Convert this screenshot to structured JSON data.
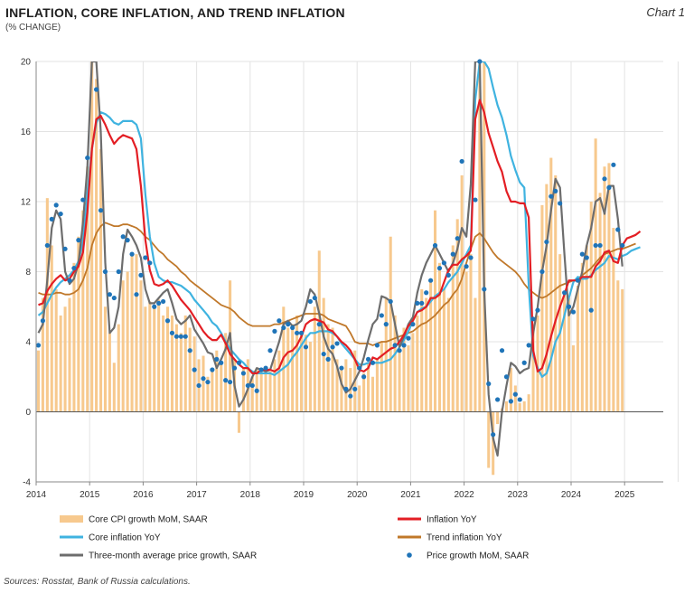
{
  "header": {
    "title": "INFLATION, CORE INFLATION, AND TREND INFLATION",
    "subtitle": "(% CHANGE)",
    "chart_number": "Chart 1"
  },
  "footer": {
    "source": "Sources: Rosstat, Bank of Russia calculations."
  },
  "colors": {
    "bars": "#f7c98e",
    "inflation": "#e31e24",
    "core": "#3fb3e0",
    "trend": "#c0782a",
    "three_month": "#6d6d6d",
    "dots": "#1f74b8",
    "grid": "#e3e3e3"
  },
  "chart_data": {
    "type": "bar",
    "ylim": [
      -4,
      20
    ],
    "yticks": [
      -4,
      0,
      4,
      8,
      12,
      16,
      20
    ],
    "xlim": [
      2014,
      2026
    ],
    "xticks": [
      "2014",
      "2015",
      "2016",
      "2017",
      "2018",
      "2019",
      "2020",
      "2021",
      "2022",
      "2023",
      "2024",
      "2025"
    ],
    "grid": true,
    "legend_position": "bottom",
    "series": [
      {
        "name": "Core CPI growth MoM, SAAR",
        "kind": "bar",
        "values": [
          3.5,
          6.5,
          12.2,
          9.5,
          7.0,
          5.5,
          6.0,
          6.5,
          8.5,
          10.0,
          11.5,
          14.0,
          22.0,
          19.0,
          15.0,
          6.0,
          4.5,
          2.8,
          5.0,
          7.5,
          8.0,
          9.0,
          9.0,
          7.5,
          6.0,
          6.3,
          6.1,
          6.4,
          5.5,
          6.0,
          5.5,
          5.0,
          4.5,
          5.5,
          4.8,
          4.3,
          3.0,
          3.2,
          2.0,
          2.5,
          3.5,
          2.8,
          4.5,
          7.5,
          3.0,
          -1.2,
          2.5,
          3.0,
          2.0,
          2.5,
          2.3,
          2.6,
          2.3,
          3.0,
          3.5,
          6.0,
          4.8,
          5.0,
          5.5,
          4.5,
          4.4,
          4.0,
          6.0,
          9.2,
          6.5,
          5.0,
          4.8,
          3.0,
          2.5,
          3.0,
          2.5,
          3.5,
          1.5,
          2.2,
          2.8,
          2.0,
          3.0,
          4.0,
          6.5,
          10.0,
          5.5,
          3.5,
          4.8,
          3.8,
          4.5,
          5.5,
          7.0,
          6.5,
          7.5,
          11.5,
          8.5,
          7.0,
          6.5,
          9.5,
          11.0,
          13.5,
          8.0,
          9.0,
          6.5,
          20.0,
          20.0,
          -3.2,
          -3.6,
          -0.7,
          0.2,
          0.6,
          2.5,
          1.5,
          0.5,
          0.6,
          1.0,
          5.0,
          5.5,
          11.8,
          13.0,
          14.5,
          13.5,
          9.0,
          6.8,
          6.5,
          3.8,
          7.2,
          8.5,
          9.5,
          12.0,
          15.6,
          12.5,
          14.0,
          14.2,
          10.5,
          7.5,
          7.0
        ]
      },
      {
        "name": "Inflation YoY",
        "kind": "line",
        "values": [
          6.1,
          6.2,
          6.9,
          7.3,
          7.6,
          7.8,
          7.5,
          7.6,
          8.0,
          8.3,
          9.1,
          11.4,
          15.0,
          16.7,
          16.9,
          16.4,
          15.8,
          15.3,
          15.6,
          15.8,
          15.7,
          15.6,
          15.0,
          12.9,
          9.8,
          8.1,
          7.3,
          7.2,
          7.3,
          7.5,
          7.2,
          6.8,
          6.4,
          6.1,
          5.8,
          5.4,
          5.0,
          4.6,
          4.3,
          4.1,
          4.1,
          4.4,
          3.9,
          3.3,
          3.0,
          2.7,
          2.5,
          2.5,
          2.2,
          2.2,
          2.4,
          2.4,
          2.4,
          2.3,
          2.5,
          3.1,
          3.4,
          3.5,
          3.8,
          4.3,
          5.0,
          5.2,
          5.3,
          5.2,
          5.1,
          4.7,
          4.6,
          4.3,
          4.0,
          3.8,
          3.5,
          3.0,
          2.4,
          2.3,
          2.5,
          3.1,
          3.0,
          3.2,
          3.4,
          3.6,
          3.7,
          4.0,
          4.4,
          4.9,
          5.2,
          5.7,
          5.8,
          6.0,
          6.5,
          6.5,
          6.7,
          7.4,
          8.1,
          8.4,
          8.4,
          8.7,
          8.9,
          9.2,
          16.7,
          17.8,
          17.1,
          15.9,
          15.1,
          14.3,
          13.7,
          12.6,
          12.0,
          12.0,
          11.9,
          11.9,
          11.1,
          3.5,
          2.3,
          2.5,
          3.3,
          4.3,
          5.2,
          6.0,
          6.7,
          7.5,
          7.5,
          7.5,
          7.7,
          7.7,
          7.7,
          8.3,
          8.6,
          9.1,
          9.2,
          8.6,
          8.5,
          9.5,
          9.9,
          10.0,
          10.1,
          10.3
        ]
      },
      {
        "name": "Core inflation YoY",
        "kind": "line",
        "values": [
          5.5,
          5.7,
          6.2,
          6.7,
          7.1,
          7.4,
          7.6,
          7.8,
          8.1,
          8.6,
          9.7,
          12.5,
          15.0,
          16.5,
          17.1,
          17.0,
          16.8,
          16.5,
          16.4,
          16.6,
          16.6,
          16.6,
          16.4,
          15.6,
          12.4,
          10.0,
          8.5,
          7.7,
          7.5,
          7.4,
          7.4,
          7.3,
          7.2,
          7.0,
          6.8,
          6.4,
          6.1,
          5.8,
          5.5,
          5.1,
          4.9,
          4.5,
          4.0,
          3.6,
          3.3,
          3.0,
          2.8,
          2.5,
          2.3,
          2.2,
          2.2,
          2.2,
          2.2,
          2.1,
          2.3,
          2.5,
          2.7,
          3.1,
          3.4,
          3.8,
          4.2,
          4.5,
          4.5,
          4.6,
          4.6,
          4.6,
          4.5,
          4.3,
          3.9,
          3.6,
          3.3,
          3.0,
          2.7,
          2.7,
          2.8,
          2.8,
          2.8,
          2.8,
          2.9,
          3.0,
          3.3,
          3.7,
          4.1,
          4.6,
          5.2,
          5.7,
          5.9,
          6.0,
          6.3,
          6.6,
          6.8,
          7.0,
          7.4,
          7.7,
          8.0,
          8.5,
          9.0,
          9.5,
          17.8,
          20.0,
          20.3,
          19.6,
          18.5,
          17.5,
          16.8,
          15.8,
          14.6,
          13.8,
          13.1,
          12.8,
          7.2,
          3.2,
          2.5,
          2.0,
          2.2,
          3.0,
          4.0,
          4.5,
          5.5,
          6.5,
          7.4,
          7.7,
          7.6,
          7.6,
          7.8,
          8.1,
          8.3,
          8.5,
          8.9,
          8.8,
          8.7,
          8.9,
          9.0,
          9.2,
          9.3,
          9.4
        ]
      },
      {
        "name": "Trend inflation YoY",
        "kind": "line",
        "values": [
          6.8,
          6.7,
          6.7,
          6.7,
          6.8,
          6.8,
          6.7,
          6.7,
          6.8,
          7.0,
          7.5,
          8.2,
          9.5,
          10.2,
          10.6,
          10.8,
          10.7,
          10.6,
          10.6,
          10.7,
          10.7,
          10.6,
          10.5,
          10.3,
          10.0,
          9.8,
          9.5,
          9.2,
          9.0,
          8.7,
          8.5,
          8.3,
          8.0,
          7.8,
          7.5,
          7.3,
          7.1,
          6.9,
          6.7,
          6.5,
          6.3,
          6.1,
          6.0,
          5.9,
          5.7,
          5.4,
          5.2,
          5.0,
          4.9,
          4.9,
          4.9,
          4.9,
          4.9,
          5.0,
          5.0,
          5.1,
          5.2,
          5.3,
          5.4,
          5.5,
          5.6,
          5.6,
          5.6,
          5.6,
          5.5,
          5.3,
          5.2,
          5.1,
          5.0,
          4.9,
          4.5,
          4.0,
          3.9,
          3.9,
          3.9,
          3.8,
          3.9,
          4.0,
          4.0,
          4.1,
          4.2,
          4.3,
          4.4,
          4.5,
          4.6,
          4.8,
          5.0,
          5.1,
          5.3,
          5.5,
          5.8,
          6.1,
          6.3,
          6.7,
          7.0,
          7.6,
          8.5,
          9.3,
          10.0,
          10.2,
          9.9,
          9.5,
          9.1,
          8.8,
          8.6,
          8.4,
          8.2,
          8.0,
          7.7,
          7.3,
          7.0,
          6.8,
          6.6,
          6.5,
          6.6,
          6.8,
          7.0,
          7.2,
          7.3,
          7.4,
          7.5,
          7.6,
          7.8,
          8.0,
          8.2,
          8.5,
          8.8,
          9.0,
          9.1,
          9.2,
          9.3,
          9.3,
          9.4,
          9.5,
          9.6
        ]
      },
      {
        "name": "Three-month average price growth, SAAR",
        "kind": "line",
        "values": [
          4.5,
          5.0,
          7.5,
          10.5,
          11.5,
          11.0,
          8.0,
          7.3,
          7.6,
          8.5,
          10.8,
          14.0,
          24.0,
          20.5,
          16.0,
          8.5,
          4.5,
          4.8,
          6.0,
          9.0,
          10.4,
          10.0,
          9.5,
          8.8,
          7.0,
          6.2,
          6.2,
          6.5,
          6.8,
          7.0,
          6.2,
          5.3,
          5.0,
          5.2,
          5.5,
          4.7,
          4.3,
          3.9,
          3.4,
          3.3,
          2.5,
          3.0,
          3.6,
          4.5,
          1.5,
          0.3,
          0.7,
          1.3,
          2.0,
          2.5,
          2.4,
          2.3,
          2.4,
          3.2,
          4.0,
          5.0,
          5.2,
          4.9,
          5.0,
          5.2,
          6.0,
          7.0,
          6.7,
          5.6,
          4.3,
          3.6,
          3.3,
          2.6,
          1.6,
          1.1,
          1.3,
          1.8,
          2.3,
          3.1,
          4.1,
          5.0,
          5.3,
          6.6,
          6.5,
          6.3,
          5.0,
          3.7,
          4.3,
          5.0,
          5.4,
          6.8,
          7.8,
          8.5,
          9.0,
          9.5,
          9.0,
          8.5,
          8.0,
          8.5,
          9.3,
          10.5,
          10.0,
          13.0,
          22.0,
          20.0,
          7.0,
          1.0,
          -1.5,
          -2.5,
          0.0,
          1.5,
          2.8,
          2.6,
          2.2,
          2.4,
          2.5,
          4.5,
          6.0,
          8.0,
          9.5,
          11.5,
          13.3,
          12.8,
          9.0,
          5.5,
          6.0,
          7.0,
          8.0,
          9.5,
          10.5,
          12.0,
          12.2,
          11.3,
          12.9,
          12.9,
          11.0,
          8.3
        ]
      },
      {
        "name": "Price growth MoM, SAAR",
        "kind": "scatter",
        "values": [
          3.8,
          5.2,
          9.5,
          11.0,
          11.8,
          11.3,
          9.3,
          7.5,
          8.2,
          9.8,
          12.1,
          14.5,
          21.0,
          18.4,
          11.5,
          8.0,
          6.7,
          6.5,
          8.0,
          10.0,
          9.8,
          9.0,
          6.7,
          7.8,
          8.8,
          8.5,
          6.0,
          6.2,
          6.3,
          5.2,
          4.5,
          4.3,
          4.3,
          4.3,
          3.5,
          2.4,
          1.5,
          1.9,
          1.7,
          2.4,
          3.0,
          2.8,
          1.8,
          1.7,
          2.5,
          2.8,
          2.2,
          1.5,
          1.5,
          1.2,
          2.4,
          2.5,
          3.5,
          4.6,
          5.2,
          4.8,
          5.0,
          4.8,
          4.5,
          4.5,
          3.7,
          6.3,
          6.5,
          5.0,
          3.3,
          3.0,
          3.7,
          3.9,
          2.5,
          1.3,
          0.9,
          1.3,
          2.5,
          2.0,
          3.0,
          2.8,
          3.8,
          5.5,
          5.0,
          6.3,
          3.8,
          3.5,
          3.8,
          4.2,
          5.0,
          6.2,
          6.2,
          6.8,
          7.5,
          9.5,
          8.2,
          8.5,
          7.8,
          9.0,
          9.9,
          14.3,
          8.3,
          8.8,
          12.1,
          20.0,
          7.0,
          1.6,
          -1.3,
          0.7,
          3.5,
          2.0,
          0.6,
          1.0,
          0.7,
          2.8,
          3.8,
          5.3,
          5.8,
          8.0,
          9.7,
          12.3,
          12.6,
          11.9,
          6.8,
          6.0,
          5.7,
          7.5,
          9.0,
          8.8,
          5.8,
          9.5,
          9.5,
          13.3,
          12.8,
          14.1,
          10.4,
          9.5
        ]
      }
    ]
  }
}
